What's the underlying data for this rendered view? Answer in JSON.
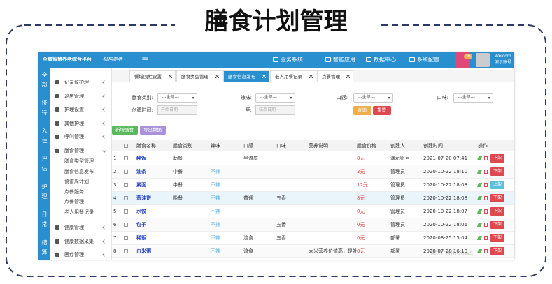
{
  "title": "膳食计划管理",
  "app": {
    "brand": "全城智慧养老综合平台",
    "subtitle": "机构养老",
    "menu_icon": "≡",
    "nav": [
      "业务系统",
      "智能应用",
      "数据中心",
      "系统配置"
    ],
    "badge": "36",
    "user": [
      "Welcom",
      "演示账号"
    ]
  },
  "left_strip": [
    "全部",
    "接待",
    "入住",
    "评估",
    "护理",
    "日常",
    "结算"
  ],
  "sidebar": [
    {
      "label": "记录仪护理"
    },
    {
      "label": "巡房管理"
    },
    {
      "label": "护理设置"
    },
    {
      "label": "其他护理"
    },
    {
      "label": "呼叫管理"
    },
    {
      "label": "膳食管理",
      "children": [
        "膳食类型管理",
        "膳食信息发布",
        "食谱周计划",
        "点餐服务",
        "点餐管理",
        "老人用餐记录"
      ]
    },
    {
      "label": "健康管理"
    },
    {
      "label": "健康数据采集"
    },
    {
      "label": "医疗管理"
    }
  ],
  "tabs": [
    {
      "label": "餐域围栏设置"
    },
    {
      "label": "膳食类型管理"
    },
    {
      "label": "膳食信息发布",
      "active": true
    },
    {
      "label": "老人用餐记录"
    },
    {
      "label": "点餐管理"
    }
  ],
  "filters": {
    "row1": [
      {
        "label": "膳食类别:",
        "placeholder": "---全部---"
      },
      {
        "label": "辣味:",
        "placeholder": "---全部---"
      },
      {
        "label": "口感:",
        "placeholder": "---全部---"
      },
      {
        "label": "口味:",
        "placeholder": "---全部---"
      }
    ],
    "row2": [
      {
        "label": "创建时间:",
        "placeholder": "开始日期"
      },
      {
        "label": "至:",
        "placeholder": "结束日期"
      }
    ],
    "buttons": [
      "查询",
      "重置"
    ]
  },
  "actions": [
    "新增膳食",
    "导出数据"
  ],
  "table": {
    "columns": [
      "膳食名称",
      "膳食类别",
      "辣味",
      "口感",
      "口味",
      "营养说明",
      "膳食价格",
      "创建人",
      "创建时间",
      "操作"
    ],
    "rows": [
      [
        1,
        "稀饭",
        "助餐",
        null,
        "半流质",
        null,
        null,
        "0元",
        "演示账号",
        "2021-07-20 07:41",
        "下架"
      ],
      [
        2,
        "油条",
        "中餐",
        "不辣",
        null,
        null,
        null,
        "3元",
        "管理员",
        "2020-10-22 18:10",
        "下架"
      ],
      [
        3,
        "素面",
        "中餐",
        "不辣",
        null,
        null,
        null,
        "12元",
        "管理员",
        "2020-10-22 18:08",
        "上架"
      ],
      [
        4,
        "葱油饼",
        "晚餐",
        "不辣",
        "普通",
        "五香",
        null,
        "8元",
        "管理员",
        "2020-10-22 18:08",
        "下架"
      ],
      [
        5,
        "水饺",
        null,
        "不辣",
        null,
        null,
        null,
        "0元",
        "管理员",
        "2020-10-22 18:07",
        "下架"
      ],
      [
        6,
        "包子",
        null,
        "不辣",
        null,
        "五香",
        null,
        "0元",
        "管理员",
        "2020-10-22 18:06",
        "下架"
      ],
      [
        7,
        "稀饭",
        null,
        "不辣",
        "流食",
        "五香",
        null,
        "0元",
        "部署",
        "2020-08-25 15:04",
        "下架"
      ],
      [
        8,
        "白米粥",
        null,
        "不辣",
        "流食",
        null,
        "大米营养价值高，是补...",
        "0元",
        "部署",
        "2020-07-28 16:10",
        "下架"
      ]
    ]
  },
  "watermark": "激活 Windows"
}
